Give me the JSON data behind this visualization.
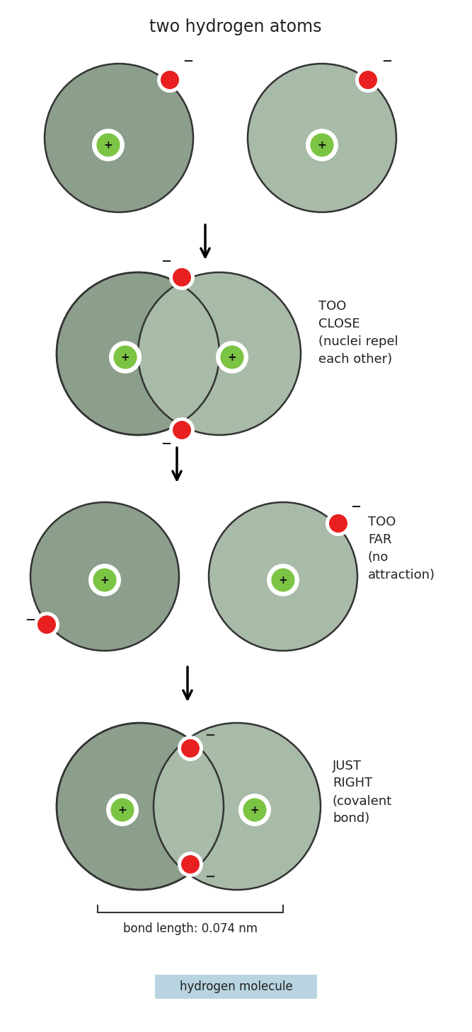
{
  "bg_color": "#ffffff",
  "title": "two hydrogen atoms",
  "atom1_color": "#8c9e8c",
  "atom2_color": "#a8baa8",
  "nucleus_color": "#7cc444",
  "electron_color": "#e82020",
  "minus_color": "#222222",
  "label_too_close": "TOO\nCLOSE\n(nuclei repel\neach other)",
  "label_too_far": "TOO\nFAR\n(no\nattraction)",
  "label_just_right": "JUST\nRIGHT\n(covalent\nbond)",
  "bond_length_text": "bond length: 0.074 nm",
  "hydrogen_molecule_text": "hydrogen molecule",
  "hydrogen_molecule_bg": "#b8d4e0",
  "figw": 6.67,
  "figh": 14.59,
  "dpi": 100
}
